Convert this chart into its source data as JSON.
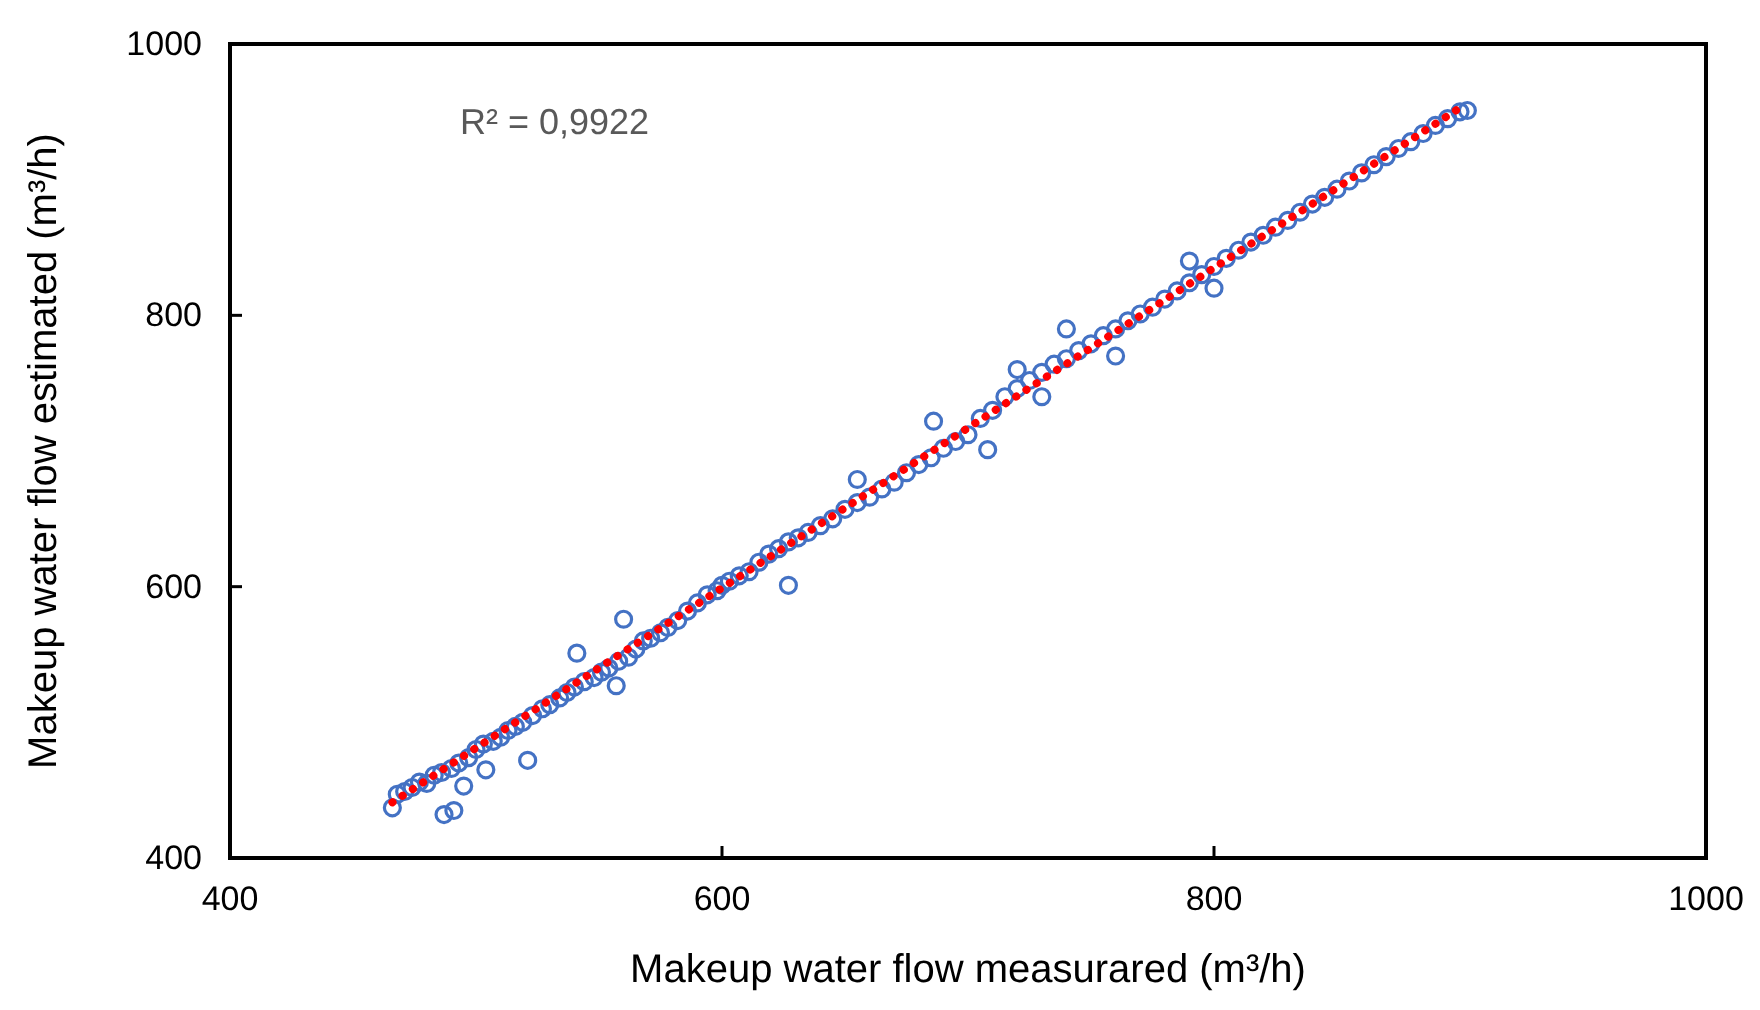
{
  "chart_data": {
    "type": "scatter",
    "xlabel": "Makeup water flow measurared (m³/h)",
    "ylabel": "Makeup water flow estimated (m³/h)",
    "annotations": [
      "R² = 0,9922"
    ],
    "xlim": [
      400,
      1000
    ],
    "xticks": [
      400,
      600,
      800,
      1000
    ],
    "ylim": [
      400,
      1000
    ],
    "yticks": [
      400,
      600,
      800,
      1000
    ],
    "grid": false,
    "marker": "circle",
    "series": [
      {
        "color": "#4472c4",
        "x": [
          466,
          468,
          471,
          474,
          477,
          480,
          483,
          486,
          487,
          490,
          491,
          493,
          495,
          497,
          500,
          503,
          504,
          507,
          510,
          513,
          516,
          519,
          521,
          523,
          527,
          530,
          534,
          537,
          541,
          540,
          544,
          548,
          551,
          554,
          557,
          558,
          560,
          562,
          565,
          568,
          571,
          575,
          578,
          582,
          586,
          590,
          594,
          598,
          600,
          603,
          607,
          611,
          615,
          619,
          623,
          627,
          627,
          631,
          635,
          640,
          645,
          650,
          655,
          655,
          660,
          665,
          670,
          675,
          680,
          686,
          685,
          690,
          695,
          700,
          705,
          708,
          710,
          715,
          720,
          725,
          730,
          735,
          740,
          745,
          750,
          755,
          760,
          765,
          770,
          775,
          780,
          785,
          790,
          795,
          800,
          805,
          810,
          815,
          820,
          825,
          830,
          835,
          840,
          845,
          850,
          855,
          860,
          865,
          870,
          875,
          880,
          885,
          890,
          895,
          900,
          903,
          740,
          760,
          800,
          790,
          720,
          730
        ],
        "values": [
          437,
          447,
          449,
          452,
          456,
          455,
          461,
          463,
          432,
          466,
          435,
          470,
          453,
          474,
          480,
          484,
          465,
          486,
          489,
          494,
          497,
          500,
          472,
          505,
          510,
          513,
          518,
          522,
          551,
          526,
          530,
          533,
          537,
          540,
          527,
          545,
          576,
          548,
          554,
          560,
          562,
          566,
          570,
          575,
          582,
          588,
          594,
          597,
          601,
          604,
          608,
          611,
          618,
          624,
          628,
          601,
          633,
          636,
          640,
          645,
          650,
          657,
          679,
          662,
          666,
          672,
          677,
          684,
          690,
          722,
          695,
          702,
          707,
          712,
          724,
          701,
          730,
          740,
          746,
          752,
          758,
          764,
          768,
          774,
          779,
          785,
          790,
          796,
          801,
          806,
          812,
          818,
          824,
          830,
          836,
          842,
          848,
          854,
          859,
          865,
          870,
          876,
          882,
          887,
          893,
          899,
          905,
          911,
          917,
          923,
          928,
          934,
          940,
          945,
          950,
          951,
          790,
          770,
          820,
          840,
          760,
          740
        ]
      },
      {
        "type": "line",
        "color": "#ff0000",
        "line_style": "dotted",
        "marker": "none",
        "x": [
          466,
          900
        ],
        "values": [
          441,
          953
        ]
      }
    ]
  }
}
